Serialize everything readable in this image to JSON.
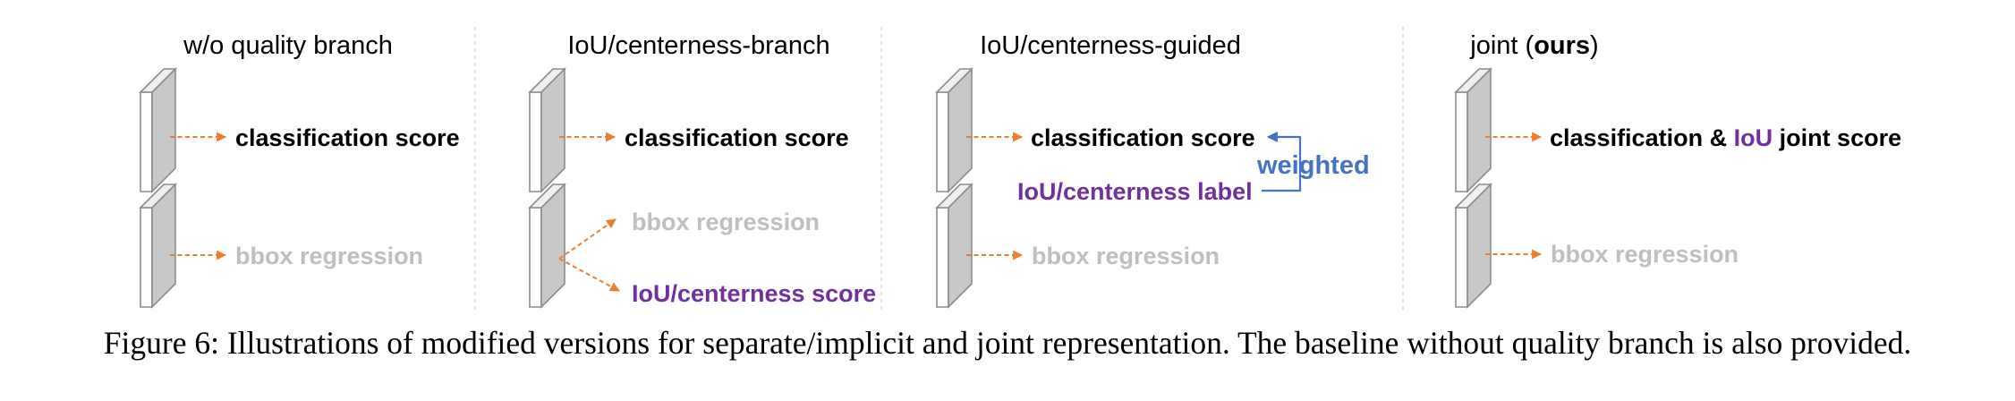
{
  "panels": [
    {
      "title": "w/o quality branch",
      "label_top": "classification score",
      "label_bottom": "bbox regression"
    },
    {
      "title": "IoU/centerness-branch",
      "label_top": "classification score",
      "label_branch_1": "bbox regression",
      "label_branch_2": "IoU/centerness score"
    },
    {
      "title": "IoU/centerness-guided",
      "label_top": "classification score",
      "label_side": "IoU/centerness label",
      "label_weight": "weighted",
      "label_bottom": "bbox regression"
    },
    {
      "title_plain": "joint (",
      "title_bold": "ours",
      "title_close": ")",
      "label_top_part1": "classification & ",
      "label_top_part2": "IoU",
      "label_top_part3": " joint score",
      "label_bottom": "bbox regression"
    }
  ],
  "caption": "Figure 6: Illustrations of modified versions for separate/implicit and joint representation. The baseline without quality branch is also provided.",
  "colors": {
    "arrow": "#ED7D31",
    "purple": "#7030A0",
    "blue": "#4472C4",
    "gray_text": "#BFBFBF",
    "divider": "#D9D9D9",
    "block_front": "#FFFFFF",
    "block_side": "#C8C8C8",
    "block_edge": "#8C8C8C"
  },
  "icons": [
    "feature-block-icon",
    "arrow-icon",
    "bracket-arrow-icon"
  ]
}
